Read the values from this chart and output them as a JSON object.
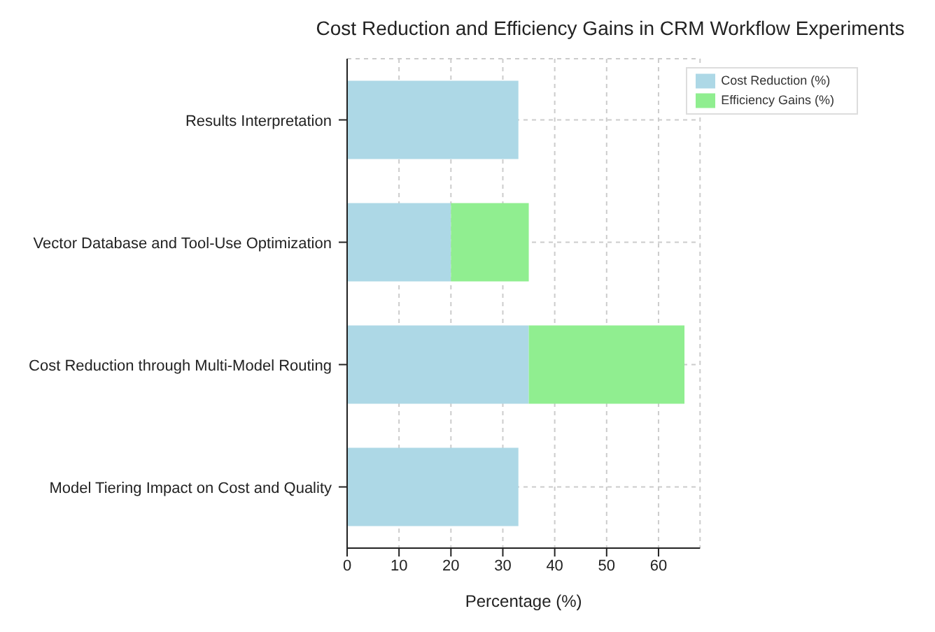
{
  "chart_data": {
    "type": "bar",
    "orientation": "horizontal",
    "stacked": true,
    "title": "Cost Reduction and Efficiency Gains in CRM Workflow Experiments",
    "xlabel": "Percentage (%)",
    "categories": [
      "Results Interpretation",
      "Vector Database and Tool-Use Optimization",
      "Cost Reduction through Multi-Model Routing",
      "Model Tiering Impact on Cost and Quality"
    ],
    "series": [
      {
        "name": "Cost Reduction (%)",
        "color": "#add8e6",
        "values": [
          33,
          20,
          35,
          33
        ]
      },
      {
        "name": "Efficiency Gains (%)",
        "color": "#90ee90",
        "values": [
          null,
          15,
          30,
          null
        ]
      }
    ],
    "xlim": [
      0,
      68
    ],
    "xticks": [
      0,
      10,
      20,
      30,
      40,
      50,
      60
    ],
    "grid": true,
    "legend": "top right"
  }
}
